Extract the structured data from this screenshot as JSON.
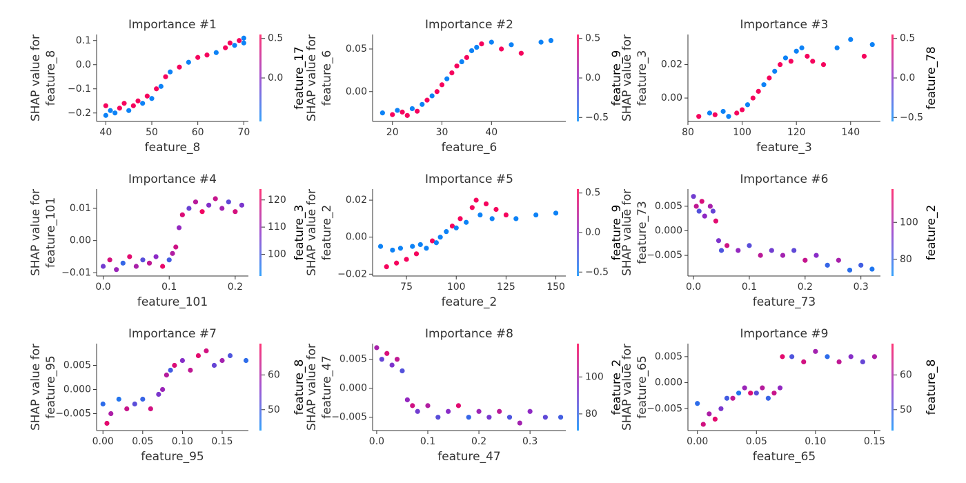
{
  "chart_data": [
    {
      "type": "scatter",
      "title": "Importance #1",
      "xlabel": "feature_8",
      "ylabel": [
        "SHAP value for",
        "feature_8"
      ],
      "xlim": [
        38,
        71
      ],
      "xticks": [
        40,
        50,
        60,
        70
      ],
      "ylim": [
        -0.235,
        0.125
      ],
      "yticks": [
        {
          "value": -0.2,
          "label": "−0.2"
        },
        {
          "value": -0.1,
          "label": "−0.1"
        },
        {
          "value": 0,
          "label": "0.0"
        },
        0.1
      ],
      "x": [
        40,
        40,
        41,
        42,
        43,
        44,
        45,
        46,
        47,
        48,
        49,
        50,
        51,
        52,
        53,
        54,
        56,
        58,
        60,
        62,
        64,
        66,
        67,
        68,
        69,
        70,
        70
      ],
      "values": [
        -0.21,
        -0.17,
        -0.19,
        -0.2,
        -0.18,
        -0.16,
        -0.19,
        -0.17,
        -0.15,
        -0.16,
        -0.13,
        -0.14,
        -0.1,
        -0.09,
        -0.05,
        -0.03,
        -0.01,
        0.01,
        0.03,
        0.04,
        0.05,
        0.07,
        0.09,
        0.08,
        0.1,
        0.09,
        0.11
      ],
      "color_values": [
        -0.5,
        0.5,
        -0.5,
        -0.5,
        0.5,
        0.5,
        -0.5,
        0.5,
        0.5,
        -0.5,
        0.5,
        -0.5,
        0.5,
        -0.5,
        0.5,
        -0.5,
        0.5,
        -0.5,
        0.5,
        0.5,
        -0.5,
        0.5,
        0.5,
        -0.5,
        0.5,
        -0.5,
        -0.5
      ],
      "colorbar": {
        "label": "feature_17",
        "lim": [
          -0.55,
          0.55
        ],
        "ticks": [
          0.5,
          {
            "value": 0,
            "label": "0.0"
          }
        ]
      },
      "colormap": [
        "#008bfb",
        "#8c2ac6",
        "#ff0052"
      ]
    },
    {
      "type": "scatter",
      "title": "Importance #2",
      "xlabel": "feature_6",
      "ylabel": [
        "SHAP value for",
        "feature_6"
      ],
      "xlim": [
        16,
        55
      ],
      "xticks": [
        20,
        30,
        40
      ],
      "ylim": [
        -0.035,
        0.067
      ],
      "yticks": [
        {
          "value": 0,
          "label": "0.00"
        },
        0.05
      ],
      "x": [
        18,
        20,
        21,
        22,
        23,
        24,
        25,
        26,
        27,
        28,
        29,
        30,
        31,
        32,
        33,
        34,
        35,
        36,
        37,
        38,
        40,
        42,
        44,
        46,
        50,
        52
      ],
      "values": [
        -0.025,
        -0.027,
        -0.022,
        -0.024,
        -0.028,
        -0.02,
        -0.023,
        -0.015,
        -0.01,
        -0.005,
        0.0,
        0.008,
        0.015,
        0.022,
        0.03,
        0.035,
        0.04,
        0.048,
        0.052,
        0.056,
        0.058,
        0.05,
        0.055,
        0.045,
        0.058,
        0.06
      ],
      "color_values": [
        -0.5,
        0.5,
        -0.5,
        0.5,
        0.5,
        -0.5,
        0.5,
        -0.5,
        0.5,
        -0.5,
        0.5,
        0.5,
        -0.5,
        0.5,
        0.5,
        -0.5,
        0.5,
        -0.5,
        -0.5,
        0.5,
        -0.5,
        0.5,
        -0.5,
        0.5,
        -0.5,
        -0.5
      ],
      "colorbar": {
        "label": "feature_9",
        "lim": [
          -0.55,
          0.55
        ],
        "ticks": [
          0.5,
          {
            "value": 0,
            "label": "0.0"
          },
          {
            "value": -0.5,
            "label": "−0.5"
          }
        ]
      },
      "colormap": [
        "#008bfb",
        "#8c2ac6",
        "#ff0052"
      ]
    },
    {
      "type": "scatter",
      "title": "Importance #3",
      "xlabel": "feature_3",
      "ylabel": [
        "SHAP value for",
        "feature_3"
      ],
      "xlim": [
        80,
        151
      ],
      "xticks": [
        80,
        100,
        120,
        140
      ],
      "ylim": [
        -0.014,
        0.038
      ],
      "yticks": [
        {
          "value": 0,
          "label": "0.00"
        },
        0.02
      ],
      "x": [
        84,
        88,
        90,
        93,
        95,
        98,
        100,
        102,
        104,
        106,
        108,
        110,
        112,
        114,
        116,
        118,
        120,
        122,
        124,
        126,
        130,
        135,
        140,
        145,
        148
      ],
      "values": [
        -0.011,
        -0.009,
        -0.01,
        -0.008,
        -0.011,
        -0.009,
        -0.007,
        -0.004,
        0.0,
        0.004,
        0.008,
        0.012,
        0.016,
        0.02,
        0.024,
        0.022,
        0.028,
        0.03,
        0.025,
        0.022,
        0.02,
        0.03,
        0.035,
        0.025,
        0.032
      ],
      "color_values": [
        0.5,
        -0.5,
        0.5,
        -0.5,
        -0.5,
        0.5,
        0.5,
        -0.5,
        0.5,
        0.5,
        -0.5,
        0.5,
        -0.5,
        0.5,
        -0.5,
        0.5,
        -0.5,
        -0.5,
        0.5,
        0.5,
        0.5,
        -0.5,
        -0.5,
        0.5,
        -0.5
      ],
      "colorbar": {
        "label": "feature_78",
        "lim": [
          -0.55,
          0.55
        ],
        "ticks": [
          0.5,
          {
            "value": 0,
            "label": "0.0"
          },
          {
            "value": -0.5,
            "label": "−0.5"
          }
        ]
      },
      "colormap": [
        "#008bfb",
        "#8c2ac6",
        "#ff0052"
      ]
    },
    {
      "type": "scatter",
      "title": "Importance #4",
      "xlabel": "feature_101",
      "ylabel": [
        "SHAP value for",
        "feature_101"
      ],
      "xlim": [
        -0.01,
        0.22
      ],
      "xticks": [
        {
          "value": 0,
          "label": "0.0"
        },
        0.1,
        0.2
      ],
      "ylim": [
        -0.011,
        0.016
      ],
      "yticks": [
        {
          "value": -0.01,
          "label": "−0.01"
        },
        {
          "value": 0,
          "label": "0.00"
        },
        0.01
      ],
      "x": [
        0.0,
        0.01,
        0.02,
        0.03,
        0.04,
        0.05,
        0.06,
        0.07,
        0.08,
        0.09,
        0.1,
        0.105,
        0.11,
        0.115,
        0.12,
        0.13,
        0.14,
        0.15,
        0.16,
        0.17,
        0.18,
        0.19,
        0.2,
        0.21
      ],
      "values": [
        -0.008,
        -0.006,
        -0.009,
        -0.007,
        -0.005,
        -0.008,
        -0.006,
        -0.007,
        -0.005,
        -0.008,
        -0.006,
        -0.004,
        -0.002,
        0.004,
        0.008,
        0.01,
        0.012,
        0.009,
        0.011,
        0.013,
        0.01,
        0.012,
        0.009,
        0.011
      ],
      "color_values": [
        105,
        118,
        110,
        98,
        120,
        112,
        102,
        115,
        108,
        121,
        100,
        113,
        117,
        109,
        119,
        104,
        114,
        122,
        107,
        116,
        111,
        103,
        118,
        106
      ],
      "colorbar": {
        "label": "feature_3",
        "lim": [
          92,
          124
        ],
        "ticks": [
          100,
          110,
          120
        ]
      },
      "colormap": [
        "#008bfb",
        "#8c2ac6",
        "#ff0052"
      ]
    },
    {
      "type": "scatter",
      "title": "Importance #5",
      "xlabel": "feature_2",
      "ylabel": [
        "SHAP value for",
        "feature_2"
      ],
      "xlim": [
        58,
        155
      ],
      "xticks": [
        75,
        100,
        125,
        150
      ],
      "ylim": [
        -0.021,
        0.026
      ],
      "yticks": [
        {
          "value": -0.02,
          "label": "−0.02"
        },
        {
          "value": 0,
          "label": "0.00"
        },
        0.02
      ],
      "x": [
        62,
        65,
        68,
        70,
        72,
        75,
        78,
        80,
        82,
        85,
        88,
        90,
        92,
        95,
        98,
        100,
        102,
        105,
        108,
        110,
        112,
        115,
        118,
        120,
        125,
        130,
        140,
        150
      ],
      "values": [
        -0.005,
        -0.016,
        -0.007,
        -0.014,
        -0.006,
        -0.012,
        -0.005,
        -0.009,
        -0.004,
        -0.006,
        -0.002,
        -0.003,
        0.0,
        0.003,
        0.006,
        0.005,
        0.01,
        0.008,
        0.016,
        0.02,
        0.012,
        0.018,
        0.01,
        0.015,
        0.012,
        0.01,
        0.012,
        0.013
      ],
      "color_values": [
        -0.5,
        0.5,
        -0.5,
        0.5,
        -0.5,
        0.5,
        -0.5,
        0.5,
        -0.5,
        -0.5,
        0.5,
        -0.5,
        -0.5,
        -0.5,
        0.5,
        -0.5,
        0.5,
        -0.5,
        0.5,
        0.5,
        -0.5,
        0.5,
        -0.5,
        0.5,
        0.5,
        -0.5,
        -0.5,
        -0.5
      ],
      "colorbar": {
        "label": "feature_9",
        "lim": [
          -0.55,
          0.55
        ],
        "ticks": [
          0.5,
          {
            "value": 0,
            "label": "0.0"
          },
          {
            "value": -0.5,
            "label": "−0.5"
          }
        ]
      },
      "colormap": [
        "#008bfb",
        "#8c2ac6",
        "#ff0052"
      ]
    },
    {
      "type": "scatter",
      "title": "Importance #6",
      "xlabel": "feature_73",
      "ylabel": [
        "SHAP value for",
        "feature_73"
      ],
      "xlim": [
        -0.01,
        0.335
      ],
      "xticks": [
        {
          "value": 0,
          "label": "0.0"
        },
        0.1,
        0.2,
        0.3
      ],
      "ylim": [
        -0.0092,
        0.0085
      ],
      "yticks": [
        {
          "value": -0.005,
          "label": "−0.005"
        },
        {
          "value": 0,
          "label": "0.000"
        },
        0.005
      ],
      "x": [
        0.0,
        0.005,
        0.01,
        0.015,
        0.02,
        0.03,
        0.035,
        0.04,
        0.045,
        0.05,
        0.06,
        0.08,
        0.1,
        0.12,
        0.14,
        0.16,
        0.18,
        0.2,
        0.22,
        0.24,
        0.26,
        0.28,
        0.3,
        0.32
      ],
      "values": [
        0.007,
        0.005,
        0.004,
        0.006,
        0.003,
        0.005,
        0.004,
        0.002,
        -0.002,
        -0.004,
        -0.003,
        -0.004,
        -0.003,
        -0.005,
        -0.004,
        -0.005,
        -0.004,
        -0.006,
        -0.005,
        -0.007,
        -0.006,
        -0.008,
        -0.007,
        -0.0078
      ],
      "color_values": [
        90,
        105,
        85,
        110,
        95,
        100,
        88,
        112,
        92,
        84,
        108,
        96,
        86,
        104,
        90,
        99,
        87,
        106,
        94,
        80,
        100,
        78,
        82,
        76
      ],
      "colorbar": {
        "label": "feature_2",
        "lim": [
          71,
          118
        ],
        "ticks": [
          80,
          100
        ]
      },
      "colormap": [
        "#008bfb",
        "#8c2ac6",
        "#ff0052"
      ]
    },
    {
      "type": "scatter",
      "title": "Importance #7",
      "xlabel": "feature_95",
      "ylabel": [
        "SHAP value for",
        "feature_95"
      ],
      "xlim": [
        -0.008,
        0.183
      ],
      "xticks": [
        {
          "value": 0,
          "label": "0.00"
        },
        0.05,
        {
          "value": 0.1,
          "label": "0.10"
        },
        0.15
      ],
      "ylim": [
        -0.0085,
        0.0095
      ],
      "yticks": [
        {
          "value": -0.005,
          "label": "−0.005"
        },
        {
          "value": 0,
          "label": "0.000"
        },
        0.005
      ],
      "x": [
        0.0,
        0.005,
        0.01,
        0.02,
        0.03,
        0.04,
        0.05,
        0.06,
        0.07,
        0.075,
        0.08,
        0.085,
        0.09,
        0.1,
        0.11,
        0.12,
        0.13,
        0.14,
        0.15,
        0.16,
        0.18
      ],
      "values": [
        -0.003,
        -0.007,
        -0.005,
        -0.002,
        -0.004,
        -0.003,
        -0.002,
        -0.004,
        -0.001,
        0.0,
        0.003,
        0.004,
        0.005,
        0.006,
        0.004,
        0.007,
        0.008,
        0.005,
        0.006,
        0.007,
        0.006
      ],
      "color_values": [
        48,
        66,
        60,
        47,
        63,
        52,
        49,
        64,
        55,
        58,
        61,
        50,
        65,
        56,
        62,
        66,
        64,
        53,
        59,
        51,
        48
      ],
      "colorbar": {
        "label": "feature_8",
        "lim": [
          44,
          69
        ],
        "ticks": [
          50,
          60
        ]
      },
      "colormap": [
        "#008bfb",
        "#8c2ac6",
        "#ff0052"
      ]
    },
    {
      "type": "scatter",
      "title": "Importance #8",
      "xlabel": "feature_47",
      "ylabel": [
        "SHAP value for",
        "feature_47"
      ],
      "xlim": [
        -0.008,
        0.37
      ],
      "xticks": [
        {
          "value": 0,
          "label": "0.0"
        },
        0.1,
        0.2,
        0.3
      ],
      "ylim": [
        -0.0073,
        0.0077
      ],
      "yticks": [
        {
          "value": -0.005,
          "label": "−0.005"
        },
        {
          "value": 0,
          "label": "0.000"
        },
        0.005
      ],
      "x": [
        0.0,
        0.01,
        0.02,
        0.03,
        0.04,
        0.05,
        0.06,
        0.07,
        0.08,
        0.1,
        0.12,
        0.14,
        0.16,
        0.18,
        0.2,
        0.22,
        0.24,
        0.26,
        0.28,
        0.3,
        0.33,
        0.36
      ],
      "values": [
        0.007,
        0.005,
        0.006,
        0.004,
        0.005,
        0.003,
        -0.002,
        -0.003,
        -0.004,
        -0.003,
        -0.005,
        -0.004,
        -0.003,
        -0.005,
        -0.004,
        -0.005,
        -0.004,
        -0.005,
        -0.006,
        -0.004,
        -0.005,
        -0.005
      ],
      "color_values": [
        100,
        88,
        110,
        92,
        105,
        85,
        96,
        108,
        90,
        102,
        86,
        94,
        112,
        80,
        98,
        91,
        104,
        84,
        99,
        95,
        87,
        82
      ],
      "colorbar": {
        "label": "feature_2",
        "lim": [
          71,
          118
        ],
        "ticks": [
          80,
          100
        ]
      },
      "colormap": [
        "#008bfb",
        "#8c2ac6",
        "#ff0052"
      ]
    },
    {
      "type": "scatter",
      "title": "Importance #9",
      "xlabel": "feature_65",
      "ylabel": [
        "SHAP value for",
        "feature_65"
      ],
      "xlim": [
        -0.008,
        0.155
      ],
      "xticks": [
        {
          "value": 0,
          "label": "0.00"
        },
        0.05,
        {
          "value": 0.1,
          "label": "0.10"
        },
        0.15
      ],
      "ylim": [
        -0.0092,
        0.0075
      ],
      "yticks": [
        {
          "value": -0.005,
          "label": "−0.005"
        },
        {
          "value": 0,
          "label": "0.000"
        },
        0.005
      ],
      "x": [
        0.0,
        0.005,
        0.01,
        0.015,
        0.02,
        0.025,
        0.03,
        0.035,
        0.04,
        0.045,
        0.05,
        0.055,
        0.06,
        0.065,
        0.07,
        0.072,
        0.08,
        0.09,
        0.1,
        0.11,
        0.12,
        0.13,
        0.14,
        0.15
      ],
      "values": [
        -0.004,
        -0.008,
        -0.006,
        -0.007,
        -0.005,
        -0.003,
        -0.003,
        -0.002,
        -0.001,
        -0.002,
        -0.002,
        -0.001,
        -0.003,
        -0.002,
        -0.001,
        0.005,
        0.005,
        0.004,
        0.006,
        0.005,
        0.004,
        0.005,
        0.004,
        0.005
      ],
      "color_values": [
        48,
        64,
        60,
        66,
        55,
        50,
        62,
        47,
        58,
        65,
        52,
        61,
        49,
        63,
        57,
        66,
        51,
        64,
        59,
        48,
        62,
        56,
        53,
        60
      ],
      "colorbar": {
        "label": "feature_8",
        "lim": [
          44,
          69
        ],
        "ticks": [
          50,
          60
        ]
      },
      "colormap": [
        "#008bfb",
        "#8c2ac6",
        "#ff0052"
      ]
    }
  ]
}
